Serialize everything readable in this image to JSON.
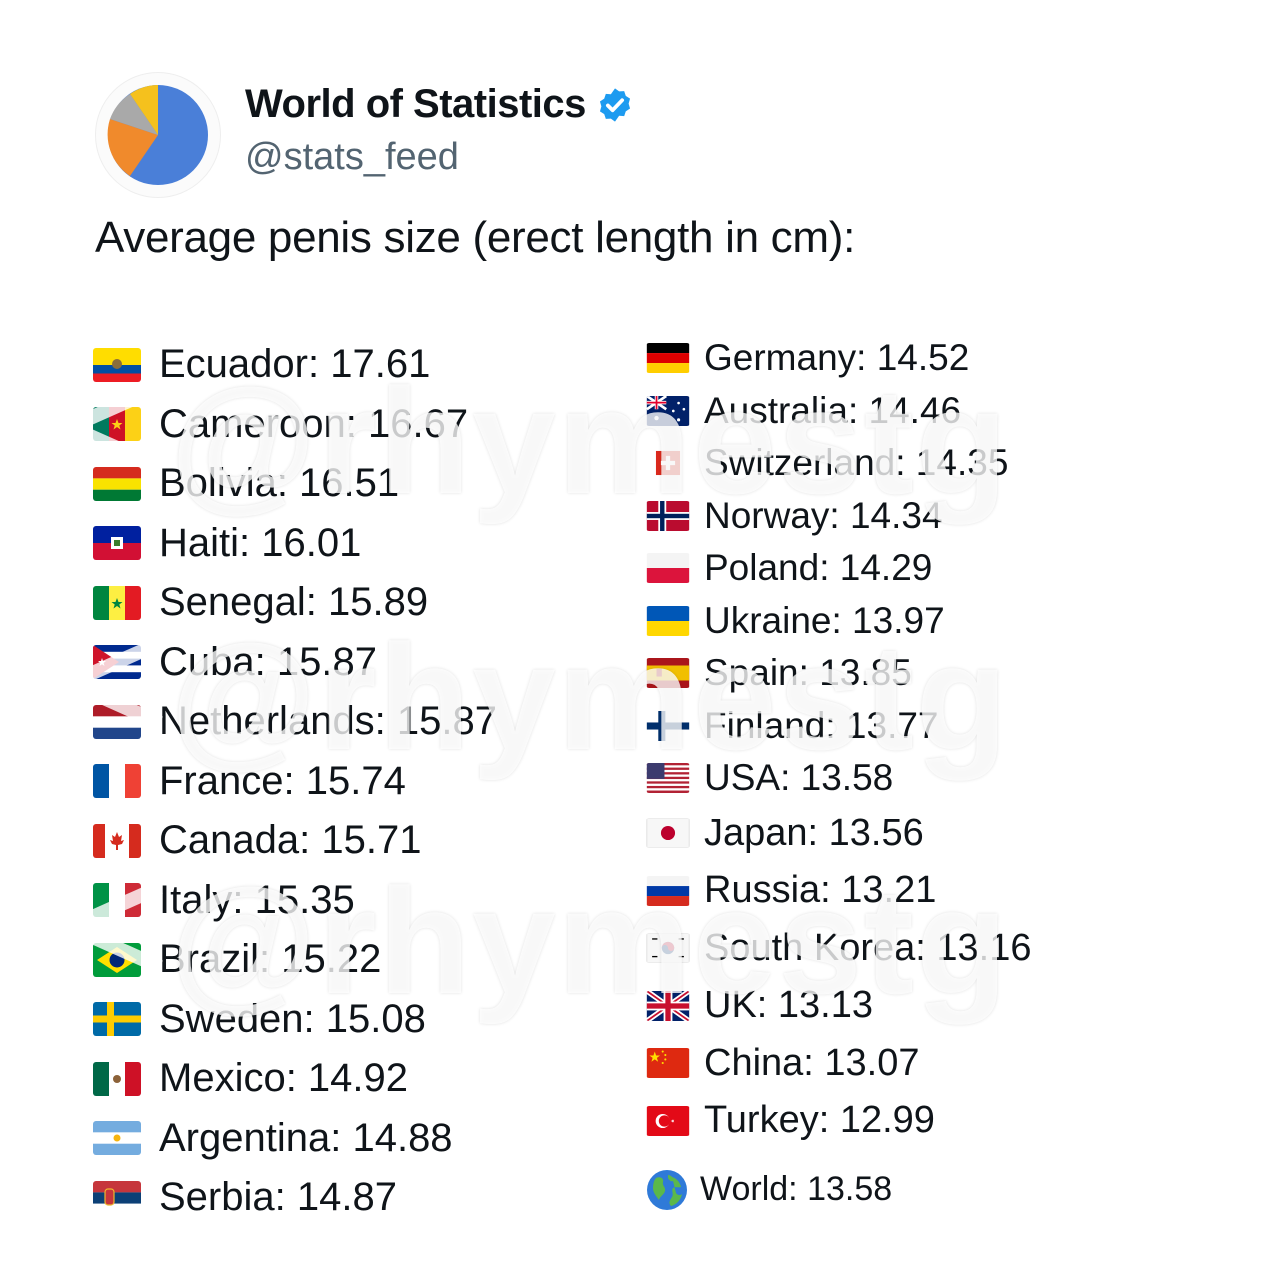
{
  "account": {
    "name": "World of Statistics",
    "handle": "@stats_feed",
    "avatar_icon": "pie-chart-icon",
    "verified_icon": "verified-badge-icon",
    "verified_color": "#1d9bf0"
  },
  "post": {
    "title": "Average penis size (erect length in cm):"
  },
  "countries_left": [
    {
      "flag": "ecuador-flag-icon",
      "label": "Ecuador: 17.61"
    },
    {
      "flag": "cameroon-flag-icon",
      "label": "Cameroon: 16.67"
    },
    {
      "flag": "bolivia-flag-icon",
      "label": "Bolivia: 16.51"
    },
    {
      "flag": "haiti-flag-icon",
      "label": "Haiti: 16.01"
    },
    {
      "flag": "senegal-flag-icon",
      "label": "Senegal: 15.89"
    },
    {
      "flag": "cuba-flag-icon",
      "label": "Cuba: 15.87"
    },
    {
      "flag": "netherlands-flag-icon",
      "label": "Netherlands: 15.87"
    },
    {
      "flag": "france-flag-icon",
      "label": "France: 15.74"
    },
    {
      "flag": "canada-flag-icon",
      "label": "Canada: 15.71"
    },
    {
      "flag": "italy-flag-icon",
      "label": "Italy: 15.35"
    },
    {
      "flag": "brazil-flag-icon",
      "label": "Brazil: 15.22"
    },
    {
      "flag": "sweden-flag-icon",
      "label": "Sweden: 15.08"
    },
    {
      "flag": "mexico-flag-icon",
      "label": "Mexico: 14.92"
    },
    {
      "flag": "argentina-flag-icon",
      "label": "Argentina: 14.88"
    },
    {
      "flag": "serbia-flag-icon",
      "label": "Serbia: 14.87"
    }
  ],
  "countries_right": [
    {
      "flag": "germany-flag-icon",
      "label": "Germany: 14.52"
    },
    {
      "flag": "australia-flag-icon",
      "label": "Australia: 14.46"
    },
    {
      "flag": "switzerland-flag-icon",
      "label": "Switzerland: 14.35"
    },
    {
      "flag": "norway-flag-icon",
      "label": "Norway: 14.34"
    },
    {
      "flag": "poland-flag-icon",
      "label": "Poland: 14.29"
    },
    {
      "flag": "ukraine-flag-icon",
      "label": "Ukraine: 13.97"
    },
    {
      "flag": "spain-flag-icon",
      "label": "Spain: 13.85"
    },
    {
      "flag": "finland-flag-icon",
      "label": "Finland: 13.77"
    },
    {
      "flag": "usa-flag-icon",
      "label": "USA: 13.58"
    },
    {
      "flag": "japan-flag-icon",
      "label": "Japan: 13.56"
    },
    {
      "flag": "russia-flag-icon",
      "label": "Russia: 13.21"
    },
    {
      "flag": "south-korea-flag-icon",
      "label": "South Korea: 13.16"
    },
    {
      "flag": "uk-flag-icon",
      "label": "UK: 13.13"
    },
    {
      "flag": "china-flag-icon",
      "label": "China: 13.07"
    },
    {
      "flag": "turkey-flag-icon",
      "label": "Turkey: 12.99"
    }
  ],
  "world": {
    "icon": "globe-icon",
    "label": "World: 13.58"
  },
  "watermark": {
    "text": "@rhymestg",
    "icon": "telegram-arrow-icon"
  }
}
